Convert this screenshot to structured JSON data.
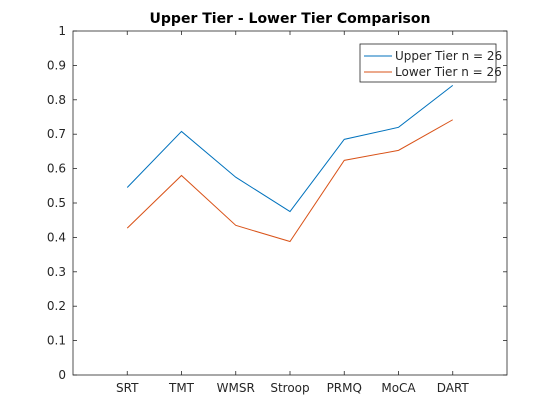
{
  "chart_data": {
    "type": "line",
    "title": "Upper Tier - Lower Tier Comparison",
    "xlabel": "",
    "ylabel": "",
    "categories": [
      "SRT",
      "TMT",
      "WMSR",
      "Stroop",
      "PRMQ",
      "MoCA",
      "DART"
    ],
    "ylim": [
      0,
      1
    ],
    "yticks": [
      "0",
      "0.1",
      "0.2",
      "0.3",
      "0.4",
      "0.5",
      "0.6",
      "0.7",
      "0.8",
      "0.9",
      "1"
    ],
    "grid": false,
    "legend_position": "top-right",
    "series": [
      {
        "name": "Upper Tier n = 26",
        "color": "#0072bd",
        "values": [
          0.545,
          0.708,
          0.575,
          0.475,
          0.685,
          0.72,
          0.842
        ]
      },
      {
        "name": "Lower Tier n = 26",
        "color": "#d95319",
        "values": [
          0.427,
          0.58,
          0.435,
          0.388,
          0.624,
          0.653,
          0.742
        ]
      }
    ]
  }
}
